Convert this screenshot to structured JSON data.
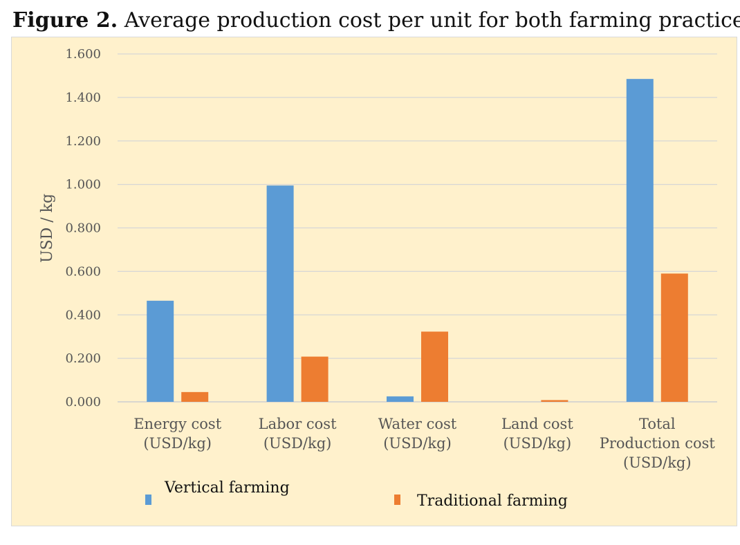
{
  "figure": {
    "label": "Figure 2.",
    "caption": "Average production cost per unit for both farming practices"
  },
  "chart_data": {
    "type": "bar",
    "title": "Average production cost per unit for both farming practices",
    "ylabel": "USD / kg",
    "xlabel": "",
    "ylim": [
      0,
      1.6
    ],
    "yticks": [
      "0.000",
      "0.200",
      "0.400",
      "0.600",
      "0.800",
      "1.000",
      "1.200",
      "1.400",
      "1.600"
    ],
    "categories": [
      [
        "Energy cost",
        "(USD/kg)"
      ],
      [
        "Labor cost",
        "(USD/kg)"
      ],
      [
        "Water cost",
        "(USD/kg)"
      ],
      [
        "Land cost",
        "(USD/kg)"
      ],
      [
        "Total",
        "Production cost",
        "(USD/kg)"
      ]
    ],
    "series": [
      {
        "name": "Vertical farming",
        "color": "#5b9bd5",
        "values": [
          0.465,
          0.995,
          0.025,
          0.0,
          1.485
        ]
      },
      {
        "name": "Traditional farming",
        "color": "#ed7d31",
        "values": [
          0.045,
          0.208,
          0.323,
          0.008,
          0.59
        ]
      }
    ],
    "grid": true,
    "legend": "bottom"
  }
}
